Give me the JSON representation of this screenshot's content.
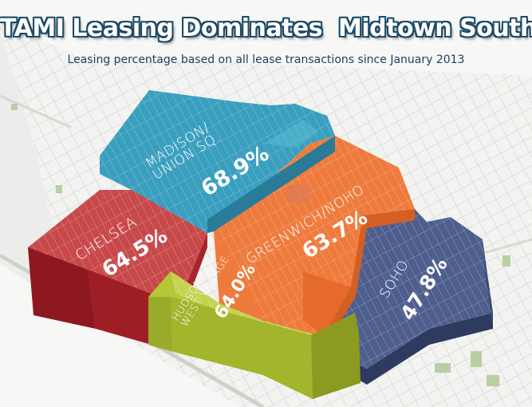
{
  "title": "TAMI Leasing Dominates  Midtown South",
  "subtitle": "Leasing percentage based on all lease transactions since January 2013",
  "districts": [
    {
      "id": "madison",
      "name_line1": "MADISON/",
      "name_line2": "UNION SQ.",
      "percent": "68.9%",
      "color": "#3a9fbf"
    },
    {
      "id": "chelsea",
      "name_line1": "CHELSEA",
      "name_line2": "",
      "percent": "64.5%",
      "color": "#c8494a"
    },
    {
      "id": "greenwich",
      "name_line1": "GREENWICH/NOHO",
      "name_line2": "",
      "percent": "63.7%",
      "color": "#ee7b3c"
    },
    {
      "id": "hudson",
      "name_line1": "HUDSON SQ/",
      "name_line2": "WEST VILLAGE",
      "percent": "64.0%",
      "color": "#b5c736"
    },
    {
      "id": "soho",
      "name_line1": "SOHO",
      "name_line2": "",
      "percent": "47.8%",
      "color": "#4e5f8e"
    }
  ]
}
